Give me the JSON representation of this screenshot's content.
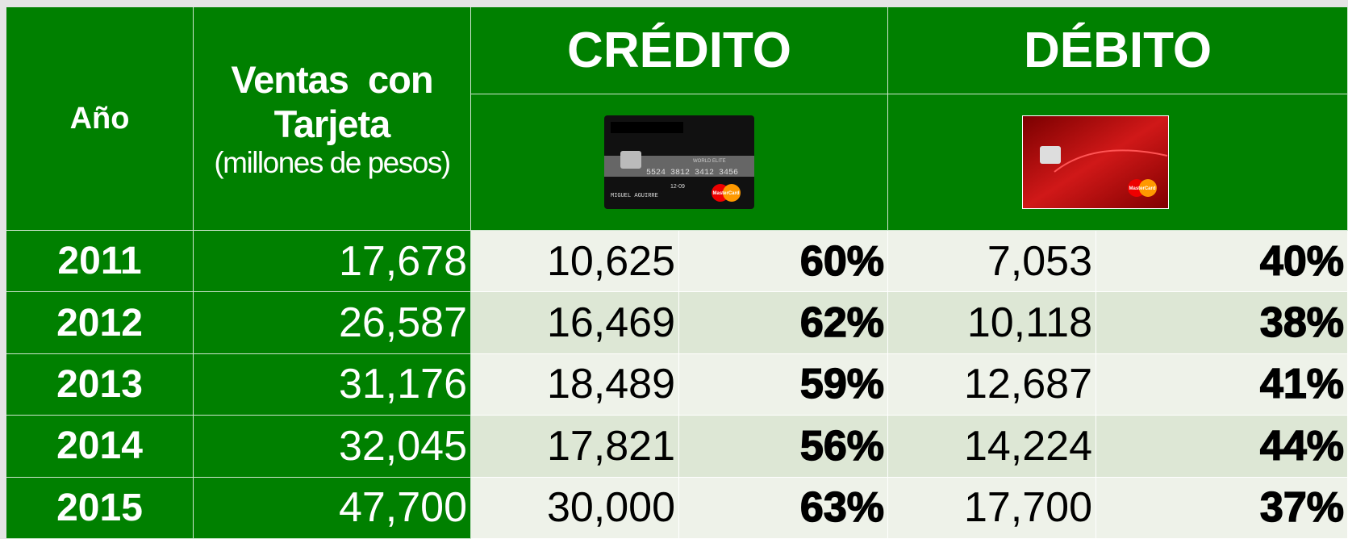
{
  "header": {
    "year": "Año",
    "sales_line1": "Ventas  con",
    "sales_line2": "Tarjeta",
    "sales_unit": "(millones de pesos)",
    "credit": "CRÉDITO",
    "debit": "DÉBITO"
  },
  "credit_card": {
    "tier": "WORLD ELITE",
    "number": "5524 3812 3412 3456",
    "expiry": "12-09",
    "holder": "MIGUEL AGUIRRE",
    "brand": "MasterCard"
  },
  "debit_card": {
    "brand": "MasterCard"
  },
  "table": {
    "rows": [
      {
        "year": "2011",
        "total": "17,678",
        "credit": "10,625",
        "credit_share": "60%",
        "debit": "7,053",
        "debit_share": "40%"
      },
      {
        "year": "2012",
        "total": "26,587",
        "credit": "16,469",
        "credit_share": "62%",
        "debit": "10,118",
        "debit_share": "38%"
      },
      {
        "year": "2013",
        "total": "31,176",
        "credit": "18,489",
        "credit_share": "59%",
        "debit": "12,687",
        "debit_share": "41%"
      },
      {
        "year": "2014",
        "total": "32,045",
        "credit": "17,821",
        "credit_share": "56%",
        "debit": "14,224",
        "debit_share": "44%"
      },
      {
        "year": "2015",
        "total": "47,700",
        "credit": "30,000",
        "credit_share": "63%",
        "debit": "17,700",
        "debit_share": "37%"
      }
    ]
  }
}
